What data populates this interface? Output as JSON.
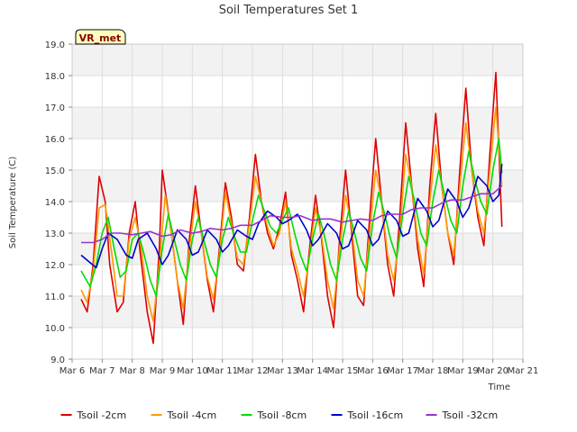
{
  "chart_data": {
    "type": "line",
    "title": "Soil Temperatures Set 1",
    "xlabel": "Time",
    "ylabel": "Soil Temperature (C)",
    "badge": "VR_met",
    "xlim": [
      6,
      21
    ],
    "ylim": [
      9.0,
      19.0
    ],
    "x_ticks": [
      {
        "value": 6,
        "label": "Mar 6"
      },
      {
        "value": 7,
        "label": "Mar 7"
      },
      {
        "value": 8,
        "label": "Mar 8"
      },
      {
        "value": 9,
        "label": "Mar 9"
      },
      {
        "value": 10,
        "label": "Mar 10"
      },
      {
        "value": 11,
        "label": "Mar 11"
      },
      {
        "value": 12,
        "label": "Mar 12"
      },
      {
        "value": 13,
        "label": "Mar 13"
      },
      {
        "value": 14,
        "label": "Mar 14"
      },
      {
        "value": 15,
        "label": "Mar 15"
      },
      {
        "value": 16,
        "label": "Mar 16"
      },
      {
        "value": 17,
        "label": "Mar 17"
      },
      {
        "value": 18,
        "label": "Mar 18"
      },
      {
        "value": 19,
        "label": "Mar 19"
      },
      {
        "value": 20,
        "label": "Mar 20"
      },
      {
        "value": 21,
        "label": "Mar 21"
      }
    ],
    "y_ticks": [
      {
        "value": 9.0,
        "label": "9.0"
      },
      {
        "value": 10.0,
        "label": "10.0"
      },
      {
        "value": 11.0,
        "label": "11.0"
      },
      {
        "value": 12.0,
        "label": "12.0"
      },
      {
        "value": 13.0,
        "label": "13.0"
      },
      {
        "value": 14.0,
        "label": "14.0"
      },
      {
        "value": 15.0,
        "label": "15.0"
      },
      {
        "value": 16.0,
        "label": "16.0"
      },
      {
        "value": 17.0,
        "label": "17.0"
      },
      {
        "value": 18.0,
        "label": "18.0"
      },
      {
        "value": 19.0,
        "label": "19.0"
      }
    ],
    "grid": true,
    "legend_position": "bottom",
    "series": [
      {
        "name": "Tsoil -2cm",
        "color": "#dd0000",
        "x": [
          6.3,
          6.5,
          6.7,
          6.9,
          7.1,
          7.25,
          7.5,
          7.7,
          7.9,
          8.1,
          8.25,
          8.5,
          8.7,
          8.9,
          9.0,
          9.3,
          9.5,
          9.7,
          9.9,
          10.1,
          10.3,
          10.5,
          10.7,
          10.9,
          11.1,
          11.3,
          11.5,
          11.7,
          11.9,
          12.1,
          12.3,
          12.5,
          12.7,
          12.9,
          13.1,
          13.3,
          13.5,
          13.7,
          13.9,
          14.1,
          14.3,
          14.5,
          14.7,
          14.9,
          15.1,
          15.3,
          15.5,
          15.7,
          15.9,
          16.1,
          16.3,
          16.5,
          16.7,
          16.9,
          17.1,
          17.3,
          17.5,
          17.7,
          17.9,
          18.1,
          18.3,
          18.5,
          18.7,
          18.9,
          19.1,
          19.3,
          19.5,
          19.7,
          19.9,
          20.1,
          20.3
        ],
        "y": [
          10.9,
          10.5,
          12.0,
          14.8,
          14.0,
          12.0,
          10.5,
          10.8,
          13.0,
          14.0,
          12.5,
          10.5,
          9.5,
          12.5,
          15.0,
          13.0,
          11.5,
          10.1,
          12.8,
          14.5,
          13.0,
          11.5,
          10.5,
          12.5,
          14.6,
          13.5,
          12.0,
          11.8,
          13.5,
          15.5,
          14.0,
          13.0,
          12.5,
          13.2,
          14.3,
          12.3,
          11.5,
          10.5,
          12.5,
          14.2,
          12.8,
          11.0,
          10.0,
          12.8,
          15.0,
          13.0,
          11.0,
          10.7,
          13.5,
          16.0,
          14.0,
          12.0,
          11.0,
          13.5,
          16.5,
          14.5,
          12.5,
          11.3,
          14.5,
          16.8,
          14.5,
          13.0,
          12.0,
          15.0,
          17.6,
          15.0,
          13.5,
          12.6,
          15.5,
          18.1,
          13.2
        ]
      },
      {
        "name": "Tsoil -4cm",
        "color": "#ff9900",
        "x": [
          6.3,
          6.5,
          6.7,
          6.9,
          7.1,
          7.3,
          7.5,
          7.7,
          7.9,
          8.1,
          8.3,
          8.5,
          8.7,
          8.9,
          9.1,
          9.3,
          9.5,
          9.7,
          9.9,
          10.1,
          10.3,
          10.5,
          10.7,
          10.9,
          11.1,
          11.3,
          11.5,
          11.7,
          11.9,
          12.1,
          12.3,
          12.5,
          12.7,
          12.9,
          13.1,
          13.3,
          13.5,
          13.7,
          13.9,
          14.1,
          14.3,
          14.5,
          14.7,
          14.9,
          15.1,
          15.3,
          15.5,
          15.7,
          15.9,
          16.1,
          16.3,
          16.5,
          16.7,
          16.9,
          17.1,
          17.3,
          17.5,
          17.7,
          17.9,
          18.1,
          18.3,
          18.5,
          18.7,
          18.9,
          19.1,
          19.3,
          19.5,
          19.7,
          19.9,
          20.1,
          20.3
        ],
        "y": [
          11.2,
          10.8,
          11.8,
          13.8,
          13.9,
          12.5,
          11.0,
          11.0,
          12.8,
          13.5,
          12.5,
          11.0,
          10.2,
          12.0,
          14.2,
          13.0,
          11.5,
          10.6,
          12.5,
          14.0,
          13.0,
          11.6,
          10.9,
          12.3,
          14.3,
          13.3,
          12.2,
          12.0,
          13.3,
          14.8,
          14.0,
          13.2,
          12.6,
          13.0,
          14.0,
          12.5,
          11.8,
          11.0,
          12.3,
          13.8,
          12.9,
          11.5,
          10.6,
          12.5,
          14.2,
          13.2,
          11.5,
          11.0,
          13.0,
          15.0,
          14.0,
          12.3,
          11.5,
          13.0,
          15.5,
          14.5,
          12.8,
          11.7,
          14.0,
          15.8,
          14.5,
          13.0,
          12.3,
          14.5,
          16.5,
          15.0,
          13.7,
          13.0,
          15.0,
          17.0,
          14.5
        ]
      },
      {
        "name": "Tsoil -8cm",
        "color": "#00dd00",
        "x": [
          6.3,
          6.6,
          6.8,
          7.0,
          7.2,
          7.4,
          7.6,
          7.8,
          8.0,
          8.2,
          8.4,
          8.6,
          8.8,
          9.0,
          9.2,
          9.4,
          9.6,
          9.8,
          10.0,
          10.2,
          10.4,
          10.6,
          10.8,
          11.0,
          11.2,
          11.4,
          11.6,
          11.8,
          12.0,
          12.2,
          12.4,
          12.6,
          12.8,
          13.0,
          13.2,
          13.4,
          13.6,
          13.8,
          14.0,
          14.2,
          14.4,
          14.6,
          14.8,
          15.0,
          15.2,
          15.4,
          15.6,
          15.8,
          16.0,
          16.2,
          16.4,
          16.6,
          16.8,
          17.0,
          17.2,
          17.4,
          17.6,
          17.8,
          18.0,
          18.2,
          18.4,
          18.6,
          18.8,
          19.0,
          19.2,
          19.4,
          19.6,
          19.8,
          20.0,
          20.2,
          20.3
        ],
        "y": [
          11.8,
          11.3,
          12.0,
          13.0,
          13.5,
          12.5,
          11.6,
          11.8,
          12.8,
          13.0,
          12.3,
          11.5,
          11.0,
          12.5,
          13.6,
          12.8,
          12.0,
          11.5,
          12.8,
          13.5,
          12.7,
          12.0,
          11.6,
          12.8,
          13.5,
          12.9,
          12.4,
          12.4,
          13.4,
          14.2,
          13.7,
          13.2,
          13.0,
          13.4,
          13.8,
          13.0,
          12.3,
          11.8,
          12.8,
          13.6,
          12.9,
          12.0,
          11.5,
          12.8,
          13.7,
          13.0,
          12.2,
          11.8,
          13.3,
          14.3,
          13.6,
          12.8,
          12.2,
          13.6,
          14.8,
          14.0,
          13.0,
          12.6,
          14.0,
          15.0,
          14.2,
          13.4,
          13.0,
          14.5,
          15.6,
          14.7,
          14.0,
          13.6,
          15.0,
          16.0,
          14.9
        ]
      },
      {
        "name": "Tsoil -16cm",
        "color": "#0000cc",
        "x": [
          6.3,
          6.8,
          7.0,
          7.2,
          7.5,
          7.8,
          8.0,
          8.2,
          8.5,
          8.8,
          9.0,
          9.2,
          9.5,
          9.8,
          10.0,
          10.2,
          10.5,
          10.8,
          11.0,
          11.2,
          11.5,
          11.8,
          12.0,
          12.2,
          12.5,
          12.8,
          13.0,
          13.2,
          13.5,
          13.8,
          14.0,
          14.2,
          14.5,
          14.8,
          15.0,
          15.2,
          15.5,
          15.8,
          16.0,
          16.2,
          16.5,
          16.8,
          17.0,
          17.2,
          17.5,
          17.8,
          18.0,
          18.2,
          18.5,
          18.8,
          19.0,
          19.2,
          19.5,
          19.8,
          20.0,
          20.2,
          20.3
        ],
        "y": [
          12.3,
          11.9,
          12.5,
          13.0,
          12.8,
          12.3,
          12.2,
          12.8,
          13.0,
          12.5,
          12.0,
          12.3,
          13.1,
          12.8,
          12.3,
          12.4,
          13.1,
          12.8,
          12.4,
          12.6,
          13.1,
          12.9,
          12.8,
          13.3,
          13.7,
          13.5,
          13.3,
          13.4,
          13.6,
          13.1,
          12.6,
          12.8,
          13.3,
          13.0,
          12.5,
          12.6,
          13.4,
          13.1,
          12.6,
          12.8,
          13.7,
          13.4,
          12.9,
          13.0,
          14.1,
          13.7,
          13.2,
          13.4,
          14.4,
          14.0,
          13.5,
          13.8,
          14.8,
          14.5,
          14.0,
          14.2,
          15.2
        ]
      },
      {
        "name": "Tsoil -32cm",
        "color": "#9933cc",
        "x": [
          6.3,
          6.7,
          7.0,
          7.3,
          7.6,
          8.0,
          8.3,
          8.6,
          9.0,
          9.3,
          9.6,
          10.0,
          10.3,
          10.6,
          11.0,
          11.3,
          11.6,
          12.0,
          12.3,
          12.6,
          13.0,
          13.3,
          13.6,
          14.0,
          14.3,
          14.6,
          15.0,
          15.3,
          15.6,
          16.0,
          16.3,
          16.6,
          17.0,
          17.3,
          17.6,
          18.0,
          18.3,
          18.6,
          19.0,
          19.3,
          19.6,
          20.0,
          20.3
        ],
        "y": [
          12.7,
          12.7,
          12.8,
          13.0,
          13.0,
          12.95,
          13.0,
          13.05,
          12.9,
          12.95,
          13.1,
          13.0,
          13.05,
          13.15,
          13.1,
          13.15,
          13.25,
          13.25,
          13.4,
          13.55,
          13.5,
          13.5,
          13.55,
          13.4,
          13.45,
          13.45,
          13.35,
          13.4,
          13.45,
          13.4,
          13.55,
          13.6,
          13.6,
          13.75,
          13.8,
          13.8,
          13.95,
          14.05,
          14.05,
          14.15,
          14.25,
          14.25,
          14.5
        ]
      }
    ]
  }
}
